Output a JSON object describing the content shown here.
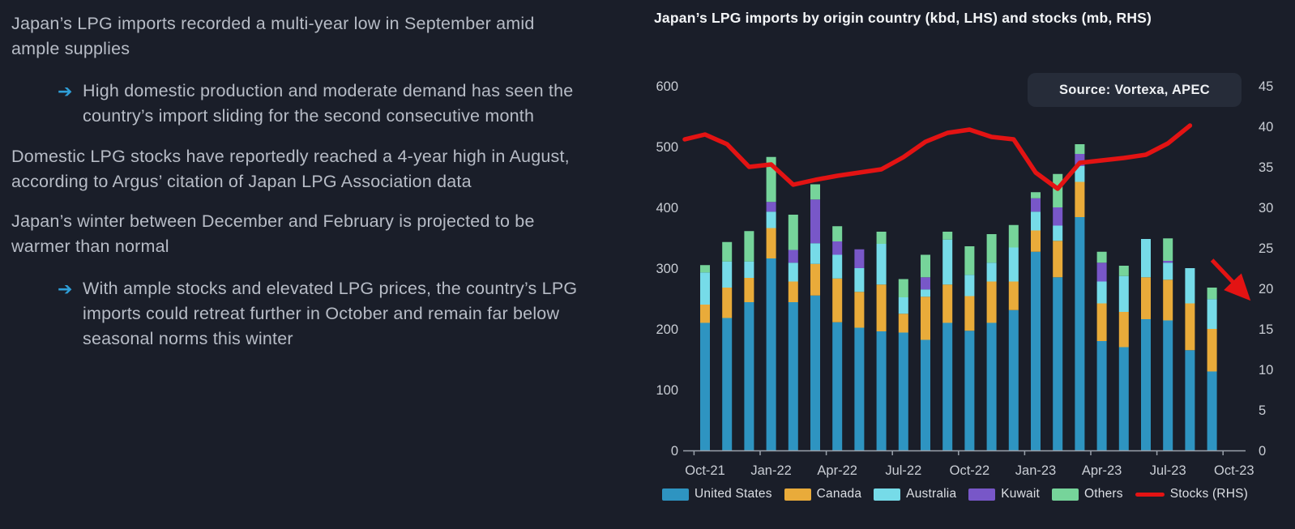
{
  "page": {
    "background": "#1a1e29"
  },
  "left_panel": {
    "bullets": [
      {
        "level": 1,
        "text": "Japan’s LPG imports recorded a multi-year low in September amid\nample supplies"
      },
      {
        "level": 2,
        "arrow": "➔",
        "text": "High domestic production and moderate demand has seen the\ncountry’s import sliding for the second consecutive month"
      },
      {
        "level": 1,
        "text": "Domestic LPG stocks have reportedly reached a 4-year high in August,\naccording to Argus’ citation of Japan LPG Association data"
      },
      {
        "level": 1,
        "text": "Japan’s winter between December and February is projected to be\nwarmer than normal"
      },
      {
        "level": 2,
        "arrow": "➔",
        "text": "With ample stocks and elevated LPG prices, the country’s LPG\nimports could retreat further in October and remain far below\nseasonal norms this winter"
      }
    ]
  },
  "chart": {
    "title": "Japan’s LPG imports by origin country (kbd, LHS) and stocks (mb, RHS)",
    "source_label": "Source: Vortexa, APEC"
  },
  "chart_data": {
    "type": "bar",
    "stacked": true,
    "title": "Japan’s LPG imports by origin country (kbd, LHS) and stocks (mb, RHS)",
    "grid": false,
    "legend_position": "bottom",
    "ylim_left": [
      0,
      600
    ],
    "yticks_left": [
      0,
      100,
      200,
      300,
      400,
      500,
      600
    ],
    "ylim_right": [
      0,
      45
    ],
    "yticks_right": [
      0,
      5,
      10,
      15,
      20,
      25,
      30,
      35,
      40,
      45
    ],
    "xtick_labels": [
      "Oct-21",
      "Jan-22",
      "Apr-22",
      "Jul-22",
      "Oct-22",
      "Jan-23",
      "Apr-23",
      "Jul-23",
      "Oct-23"
    ],
    "x": [
      "Oct-21",
      "Nov-21",
      "Dec-21",
      "Jan-22",
      "Feb-22",
      "Mar-22",
      "Apr-22",
      "May-22",
      "Jun-22",
      "Jul-22",
      "Aug-22",
      "Sep-22",
      "Oct-22",
      "Nov-22",
      "Dec-22",
      "Jan-23",
      "Feb-23",
      "Mar-23",
      "Apr-23",
      "May-23",
      "Jun-23",
      "Jul-23",
      "Aug-23",
      "Sep-23",
      "Oct-23"
    ],
    "series": [
      {
        "name": "United States",
        "color": "#2e94c1",
        "values": [
          210,
          218,
          244,
          316,
          244,
          255,
          211,
          202,
          196,
          194,
          182,
          210,
          197,
          210,
          231,
          327,
          285,
          384,
          180,
          170,
          216,
          214,
          165,
          130,
          null
        ]
      },
      {
        "name": "Canada",
        "color": "#e9ab3a",
        "values": [
          30,
          50,
          40,
          50,
          34,
          52,
          72,
          59,
          77,
          31,
          71,
          63,
          57,
          68,
          47,
          35,
          60,
          58,
          62,
          58,
          69,
          67,
          77,
          70,
          null
        ]
      },
      {
        "name": "Australia",
        "color": "#76dbe8",
        "values": [
          53,
          43,
          27,
          27,
          31,
          34,
          39,
          39,
          67,
          27,
          12,
          74,
          35,
          31,
          56,
          31,
          25,
          26,
          36,
          59,
          63,
          28,
          58,
          49,
          null
        ]
      },
      {
        "name": "Kuwait",
        "color": "#7857c8",
        "values": [
          0,
          0,
          0,
          16,
          21,
          72,
          22,
          31,
          0,
          0,
          20,
          0,
          0,
          0,
          0,
          22,
          30,
          20,
          31,
          0,
          0,
          3,
          0,
          0,
          null
        ]
      },
      {
        "name": "Others",
        "color": "#76d49a",
        "values": [
          12,
          32,
          50,
          74,
          58,
          25,
          25,
          0,
          20,
          30,
          37,
          13,
          47,
          47,
          37,
          10,
          55,
          16,
          18,
          17,
          0,
          37,
          0,
          19,
          null
        ]
      },
      {
        "name": "Stocks (RHS)",
        "line": true,
        "axis": "right",
        "color": "#e31313",
        "values": [
          39,
          37.8,
          35,
          35.3,
          32.8,
          33.4,
          33.9,
          34.3,
          34.7,
          36.2,
          38.1,
          39.2,
          39.6,
          38.7,
          38.4,
          34.3,
          32.3,
          35.5,
          35.8,
          36.1,
          36.5,
          37.9,
          40.1,
          null,
          null
        ]
      }
    ],
    "annotation": {
      "type": "arrow",
      "color": "#e31313",
      "from_slot": 23,
      "from_rhs": 23.5,
      "to_slot": 24.5,
      "to_rhs": 19.2
    }
  }
}
